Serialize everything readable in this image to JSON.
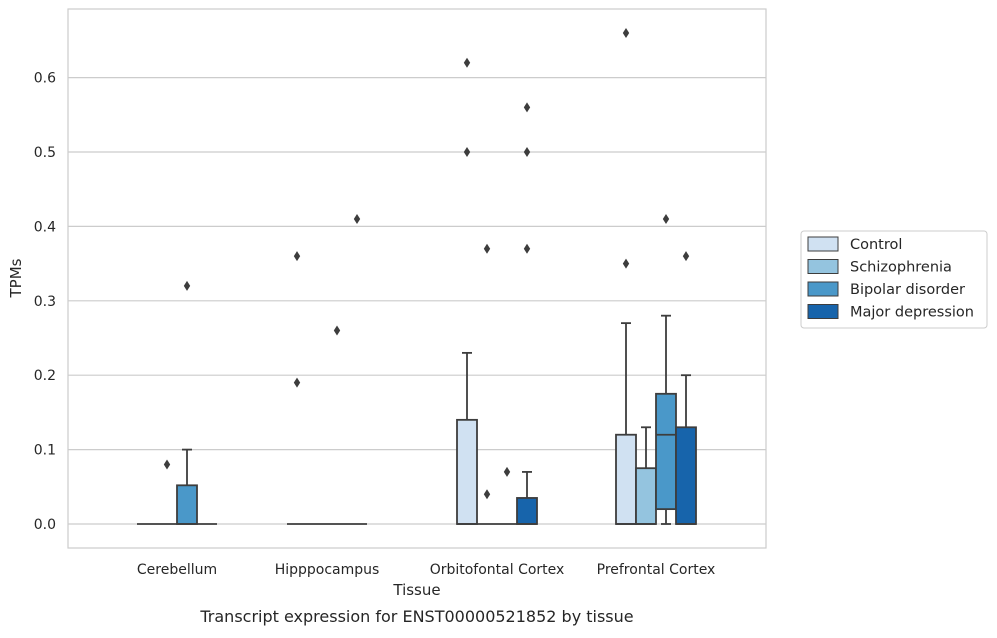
{
  "chart_data": {
    "type": "box",
    "caption": "Transcript expression for ENST00000521852 by tissue",
    "xlabel": "Tissue",
    "ylabel": "TPMs",
    "ylim": [
      -0.033,
      0.695
    ],
    "yticks": [
      "0.0",
      "0.1",
      "0.2",
      "0.3",
      "0.4",
      "0.5",
      "0.6"
    ],
    "grid": true,
    "legend_position": "right",
    "categories": [
      "Cerebellum",
      "Hipppocampus",
      "Orbitofontal Cortex",
      "Prefrontal Cortex"
    ],
    "series": [
      {
        "name": "Control",
        "color": "#d0e1f2",
        "boxes": [
          {
            "q1": 0,
            "median": 0,
            "q3": 0,
            "whisker_low": 0,
            "whisker_high": 0,
            "outliers": []
          },
          {
            "q1": 0,
            "median": 0,
            "q3": 0,
            "whisker_low": 0,
            "whisker_high": 0,
            "outliers": [
              0.19,
              0.36
            ]
          },
          {
            "q1": 0,
            "median": 0,
            "q3": 0.14,
            "whisker_low": 0,
            "whisker_high": 0.23,
            "outliers": [
              0.5,
              0.62
            ]
          },
          {
            "q1": 0,
            "median": 0,
            "q3": 0.12,
            "whisker_low": 0,
            "whisker_high": 0.27,
            "outliers": [
              0.35,
              0.66
            ]
          }
        ]
      },
      {
        "name": "Schizophrenia",
        "color": "#94c4df",
        "boxes": [
          {
            "q1": 0,
            "median": 0,
            "q3": 0,
            "whisker_low": 0,
            "whisker_high": 0,
            "outliers": [
              0.08
            ]
          },
          {
            "q1": 0,
            "median": 0,
            "q3": 0,
            "whisker_low": 0,
            "whisker_high": 0,
            "outliers": []
          },
          {
            "q1": 0,
            "median": 0,
            "q3": 0,
            "whisker_low": 0,
            "whisker_high": 0,
            "outliers": [
              0.04,
              0.37
            ]
          },
          {
            "q1": 0,
            "median": 0,
            "q3": 0.075,
            "whisker_low": 0,
            "whisker_high": 0.13,
            "outliers": []
          }
        ]
      },
      {
        "name": "Bipolar disorder",
        "color": "#4a98c9",
        "boxes": [
          {
            "q1": 0,
            "median": 0,
            "q3": 0.052,
            "whisker_low": 0,
            "whisker_high": 0.1,
            "outliers": [
              0.32
            ]
          },
          {
            "q1": 0,
            "median": 0,
            "q3": 0,
            "whisker_low": 0,
            "whisker_high": 0,
            "outliers": [
              0.26
            ]
          },
          {
            "q1": 0,
            "median": 0,
            "q3": 0,
            "whisker_low": 0,
            "whisker_high": 0,
            "outliers": [
              0.07
            ]
          },
          {
            "q1": 0.02,
            "median": 0.12,
            "q3": 0.175,
            "whisker_low": 0,
            "whisker_high": 0.28,
            "outliers": [
              0.41
            ]
          }
        ]
      },
      {
        "name": "Major depression",
        "color": "#1764ab",
        "boxes": [
          {
            "q1": 0,
            "median": 0,
            "q3": 0,
            "whisker_low": 0,
            "whisker_high": 0,
            "outliers": []
          },
          {
            "q1": 0,
            "median": 0,
            "q3": 0,
            "whisker_low": 0,
            "whisker_high": 0,
            "outliers": [
              0.41
            ]
          },
          {
            "q1": 0,
            "median": 0,
            "q3": 0.035,
            "whisker_low": 0,
            "whisker_high": 0.07,
            "outliers": [
              0.37,
              0.5,
              0.56
            ]
          },
          {
            "q1": 0,
            "median": 0,
            "q3": 0.13,
            "whisker_low": 0,
            "whisker_high": 0.2,
            "outliers": [
              0.36
            ]
          }
        ]
      }
    ]
  }
}
